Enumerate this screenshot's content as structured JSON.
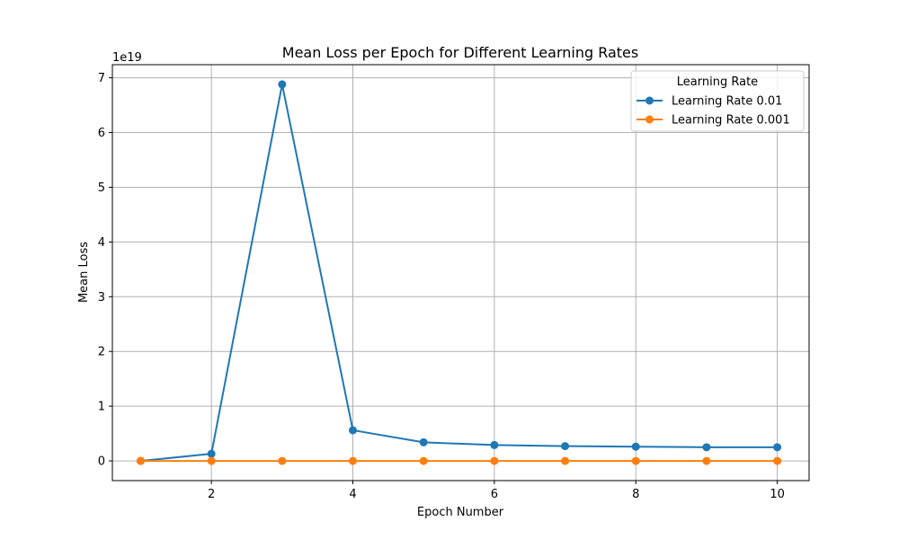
{
  "chart_data": {
    "type": "line",
    "title": "Mean Loss per Epoch for Different Learning Rates",
    "xlabel": "Epoch Number",
    "ylabel": "Mean Loss",
    "y_offset_text": "1e19",
    "y_scale_factor": 1e+19,
    "xlim": [
      0.6,
      10.45
    ],
    "ylim": [
      -0.36,
      7.24
    ],
    "xticks": [
      2,
      4,
      6,
      8,
      10
    ],
    "yticks": [
      0,
      1,
      2,
      3,
      4,
      5,
      6,
      7
    ],
    "grid": true,
    "legend": {
      "title": "Learning Rate",
      "placement": "upper right"
    },
    "x": [
      1,
      2,
      3,
      4,
      5,
      6,
      7,
      8,
      9,
      10
    ],
    "series": [
      {
        "name": "Learning Rate 0.01",
        "color": "#1f77b4",
        "marker": "circle",
        "values": [
          0.0,
          0.13,
          6.88,
          0.56,
          0.34,
          0.29,
          0.27,
          0.26,
          0.25,
          0.25
        ]
      },
      {
        "name": "Learning Rate 0.001",
        "color": "#ff7f0e",
        "marker": "circle",
        "values": [
          0.0,
          0.0,
          0.0,
          0.0,
          0.0,
          0.0,
          0.0,
          0.0,
          0.0,
          0.0
        ]
      }
    ]
  }
}
